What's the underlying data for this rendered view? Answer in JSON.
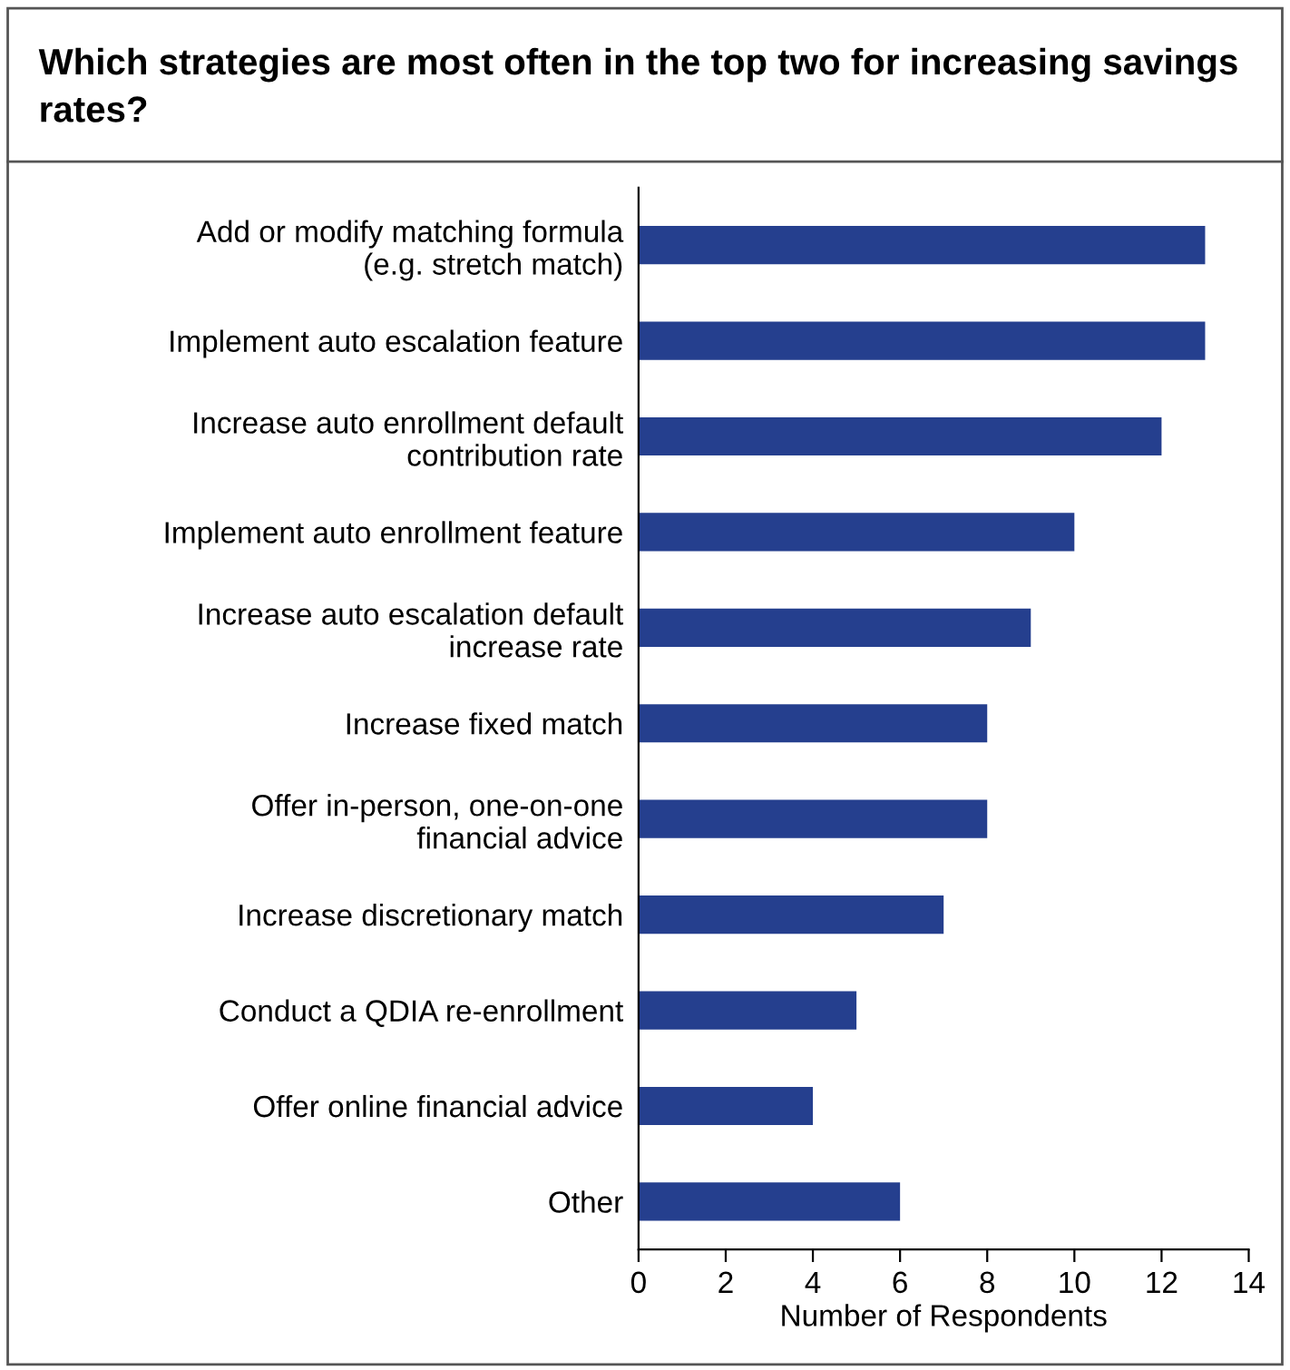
{
  "chart_data": {
    "type": "bar",
    "orientation": "horizontal",
    "title": "Which strategies are most often in the top two for increasing savings rates?",
    "xlabel": "Number of Respondents",
    "categories": [
      "Add or modify matching formula\n(e.g. stretch match)",
      "Implement auto escalation feature",
      "Increase auto enrollment default\ncontribution rate",
      "Implement auto enrollment feature",
      "Increase auto escalation default\nincrease rate",
      "Increase fixed match",
      "Offer in-person, one-on-one\nfinancial advice",
      "Increase discretionary match",
      "Conduct a QDIA re-enrollment",
      "Offer online financial advice",
      "Other"
    ],
    "values": [
      13,
      13,
      12,
      10,
      9,
      8,
      8,
      7,
      5,
      4,
      6
    ],
    "color": "#253f8e",
    "xlim": [
      0,
      14
    ],
    "xticks": [
      0,
      2,
      4,
      6,
      8,
      10,
      12,
      14
    ],
    "grid": false
  }
}
